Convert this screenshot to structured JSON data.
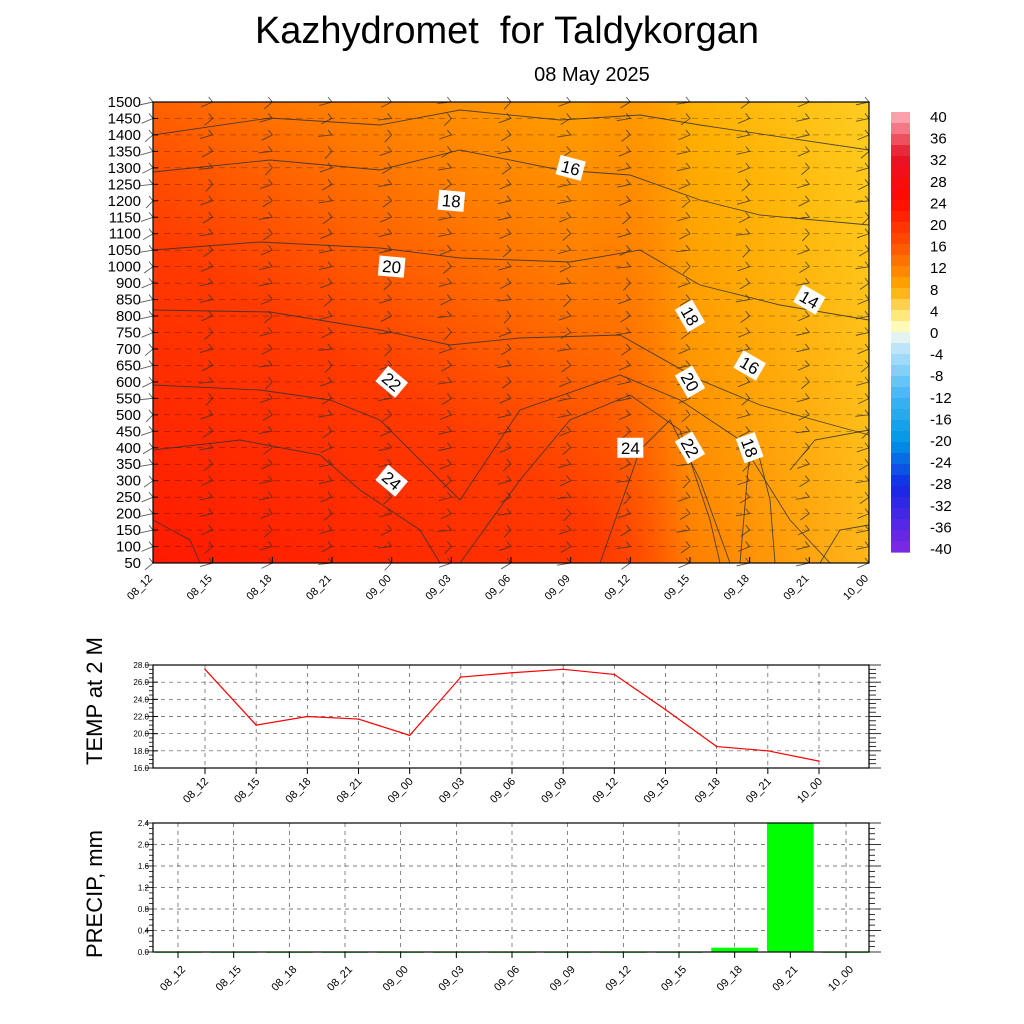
{
  "header": {
    "title": "Kazhydromet  for Taldykorgan",
    "subtitle": "08 May 2025"
  },
  "colorbar": {
    "labels": [
      "40",
      "36",
      "32",
      "28",
      "24",
      "20",
      "16",
      "12",
      "8",
      "4",
      "0",
      "-4",
      "-8",
      "-12",
      "-16",
      "-20",
      "-24",
      "-28",
      "-32",
      "-36",
      "-40"
    ]
  },
  "chart_data": [
    {
      "type": "heatmap",
      "title": "Kazhydromet  for Taldykorgan",
      "subtitle": "08 May 2025",
      "x_ticks": [
        "08_12",
        "08_15",
        "08_18",
        "08_21",
        "09_00",
        "09_03",
        "09_06",
        "09_09",
        "09_12",
        "09_15",
        "09_18",
        "09_21",
        "10_00"
      ],
      "y_ticks": [
        1500,
        1450,
        1400,
        1350,
        1300,
        1250,
        1200,
        1150,
        1100,
        1050,
        1000,
        900,
        850,
        800,
        750,
        700,
        650,
        600,
        550,
        500,
        450,
        400,
        350,
        300,
        250,
        200,
        150,
        100,
        50
      ],
      "contour_labels": [
        {
          "text": "16",
          "x": "09_09",
          "y": 1300
        },
        {
          "text": "18",
          "x": "09_03",
          "y": 1200
        },
        {
          "text": "20",
          "x": "09_00",
          "y": 1000
        },
        {
          "text": "22",
          "x": "09_00",
          "y": 600
        },
        {
          "text": "24",
          "x": "09_00",
          "y": 300
        },
        {
          "text": "24",
          "x": "09_12",
          "y": 400
        },
        {
          "text": "18",
          "x": "09_15",
          "y": 800
        },
        {
          "text": "20",
          "x": "09_15",
          "y": 600
        },
        {
          "text": "22",
          "x": "09_15",
          "y": 400
        },
        {
          "text": "18",
          "x": "09_18",
          "y": 400
        },
        {
          "text": "16",
          "x": "09_18",
          "y": 650
        },
        {
          "text": "14",
          "x": "09_21",
          "y": 850
        }
      ],
      "colorscale": [
        "40",
        "36",
        "32",
        "28",
        "24",
        "20",
        "16",
        "12",
        "8",
        "4",
        "0",
        "-4",
        "-8",
        "-12",
        "-16",
        "-20",
        "-24",
        "-28",
        "-32",
        "-36",
        "-40"
      ]
    },
    {
      "type": "line",
      "ylabel": "TEMP at 2 M",
      "categories": [
        "08_12",
        "08_15",
        "08_18",
        "08_21",
        "09_00",
        "09_03",
        "09_06",
        "09_09",
        "09_12",
        "09_15",
        "09_18",
        "09_21",
        "10_00"
      ],
      "values": [
        27.5,
        21.0,
        22.0,
        21.7,
        19.8,
        26.6,
        27.1,
        27.5,
        26.9,
        22.8,
        18.5,
        18.0,
        16.8
      ],
      "y_ticks": [
        "28.0",
        "26.0",
        "24.0",
        "22.0",
        "20.0",
        "18.0",
        "16.0"
      ],
      "ylim": [
        16,
        28
      ],
      "color": "#ff0000",
      "grid": true
    },
    {
      "type": "bar",
      "ylabel": "PRECIP, mm",
      "categories": [
        "08_12",
        "08_15",
        "08_18",
        "08_21",
        "09_00",
        "09_03",
        "09_06",
        "09_09",
        "09_12",
        "09_15",
        "09_18",
        "09_21",
        "10_00"
      ],
      "values": [
        0,
        0,
        0,
        0,
        0,
        0,
        0,
        0,
        0,
        0,
        0.08,
        2.4,
        0
      ],
      "y_ticks": [
        "2.4",
        "2.0",
        "1.6",
        "1.2",
        "0.8",
        "0.4",
        "0.0"
      ],
      "ylim": [
        0,
        2.4
      ],
      "color": "#00ff00",
      "grid": true
    }
  ]
}
